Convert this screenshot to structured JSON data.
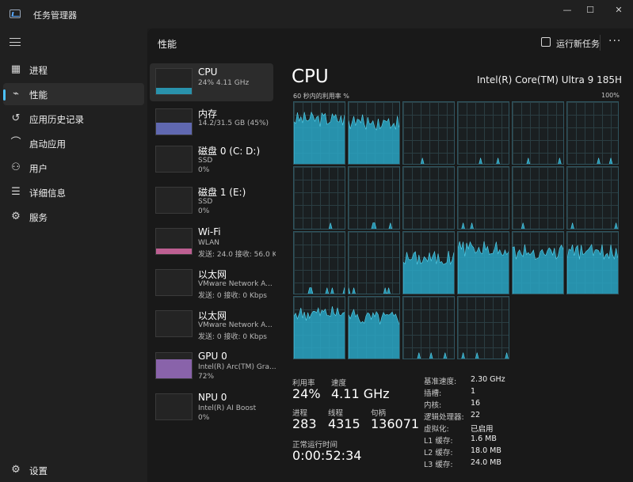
{
  "window": {
    "title": "任务管理器",
    "controls": {
      "minimize": "—",
      "maximize": "☐",
      "close": "✕"
    }
  },
  "nav": {
    "items": [
      {
        "label": "进程",
        "icon": "processes-icon"
      },
      {
        "label": "性能",
        "icon": "performance-icon",
        "active": true
      },
      {
        "label": "应用历史记录",
        "icon": "app-history-icon"
      },
      {
        "label": "启动应用",
        "icon": "startup-apps-icon"
      },
      {
        "label": "用户",
        "icon": "users-icon"
      },
      {
        "label": "详细信息",
        "icon": "details-icon"
      },
      {
        "label": "服务",
        "icon": "services-icon"
      }
    ],
    "settings": {
      "label": "设置",
      "icon": "settings-icon"
    }
  },
  "header": {
    "title": "性能",
    "run_task": "运行新任务",
    "more": "···"
  },
  "devices": [
    {
      "name": "CPU",
      "sub": "24% 4.11 GHz",
      "sub2": "",
      "color": "#2aa6c4",
      "fill": 0.24,
      "active": true
    },
    {
      "name": "内存",
      "sub": "14.2/31.5 GB (45%)",
      "sub2": "",
      "color": "#6b74c9",
      "fill": 0.45
    },
    {
      "name": "磁盘 0 (C: D:)",
      "sub": "SSD",
      "sub2": "0%",
      "color": "#5cb85c",
      "fill": 0
    },
    {
      "name": "磁盘 1 (E:)",
      "sub": "SSD",
      "sub2": "0%",
      "color": "#5cb85c",
      "fill": 0
    },
    {
      "name": "Wi-Fi",
      "sub": "WLAN",
      "sub2": "发送: 24.0 接收: 56.0 K",
      "color": "#d86aa6",
      "fill": 0.2
    },
    {
      "name": "以太网",
      "sub": "VMware Network A...",
      "sub2": "发送: 0 接收: 0 Kbps",
      "color": "#d86aa6",
      "fill": 0
    },
    {
      "name": "以太网",
      "sub": "VMware Network A...",
      "sub2": "发送: 0 接收: 0 Kbps",
      "color": "#d86aa6",
      "fill": 0
    },
    {
      "name": "GPU 0",
      "sub": "Intel(R) Arc(TM) Gra...",
      "sub2": "72%",
      "color": "#9b6fc2",
      "fill": 0.72
    },
    {
      "name": "NPU 0",
      "sub": "Intel(R) AI Boost",
      "sub2": "0%",
      "color": "#9b6fc2",
      "fill": 0
    }
  ],
  "detail": {
    "title": "CPU",
    "model": "Intel(R) Core(TM) Ultra 9 185H",
    "axis_left": "60 秒内的利用率 %",
    "axis_right": "100%",
    "graph_color": "#2aa6c4",
    "core_levels": [
      0.75,
      0.7,
      0.02,
      0.02,
      0.02,
      0.03,
      0.02,
      0.02,
      0.02,
      0.02,
      0.05,
      0.02,
      0.02,
      0.02,
      0.6,
      0.75,
      0.7,
      0.7,
      0.75,
      0.7,
      0.02,
      0.02
    ]
  },
  "stats": {
    "utilization": {
      "label": "利用率",
      "value": "24%"
    },
    "speed": {
      "label": "速度",
      "value": "4.11 GHz"
    },
    "processes": {
      "label": "进程",
      "value": "283"
    },
    "threads": {
      "label": "线程",
      "value": "4315"
    },
    "handles": {
      "label": "句柄",
      "value": "136071"
    },
    "uptime": {
      "label": "正常运行时间",
      "value": "0:00:52:34"
    }
  },
  "specs": [
    {
      "key": "基准速度:",
      "value": "2.30 GHz"
    },
    {
      "key": "插槽:",
      "value": "1"
    },
    {
      "key": "内核:",
      "value": "16"
    },
    {
      "key": "逻辑处理器:",
      "value": "22"
    },
    {
      "key": "虚拟化:",
      "value": "已启用"
    },
    {
      "key": "L1 缓存:",
      "value": "1.6 MB"
    },
    {
      "key": "L2 缓存:",
      "value": "18.0 MB"
    },
    {
      "key": "L3 缓存:",
      "value": "24.0 MB"
    }
  ]
}
